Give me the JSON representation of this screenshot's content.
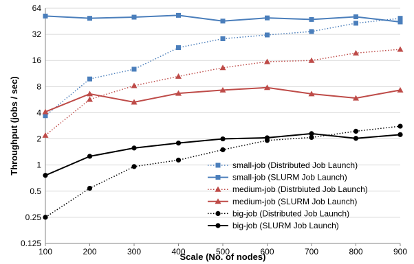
{
  "chart_data": {
    "type": "line",
    "title": "",
    "xlabel": "Scale (No. of nodes)",
    "ylabel": "Throughput (jobs / sec)",
    "y_scale": "log2",
    "x": [
      100,
      200,
      300,
      400,
      500,
      600,
      700,
      800,
      900
    ],
    "xlim": [
      100,
      900
    ],
    "ylim": [
      0.125,
      64
    ],
    "x_ticks": [
      "100",
      "200",
      "300",
      "400",
      "500",
      "600",
      "700",
      "800",
      "900"
    ],
    "y_ticks": [
      {
        "value": 0.125,
        "label": "0.125"
      },
      {
        "value": 0.25,
        "label": "0.25"
      },
      {
        "value": 0.5,
        "label": "0.5"
      },
      {
        "value": 1,
        "label": "1"
      },
      {
        "value": 2,
        "label": "2"
      },
      {
        "value": 4,
        "label": "4"
      },
      {
        "value": 8,
        "label": "8"
      },
      {
        "value": 16,
        "label": "16"
      },
      {
        "value": 32,
        "label": "32"
      },
      {
        "value": 64,
        "label": "64"
      }
    ],
    "grid": "horizontal",
    "legend_position": "bottom-right",
    "series": [
      {
        "name": "small-job (Distributed Job Launch)",
        "color": "#4a7ebb",
        "marker": "square",
        "dash": "dotted",
        "values": [
          3.7,
          9.8,
          12.7,
          22.5,
          28.5,
          31.5,
          34.5,
          43,
          49
        ]
      },
      {
        "name": "small-job (SLURM Job Launch)",
        "color": "#4a7ebb",
        "marker": "square",
        "dash": "solid",
        "values": [
          52,
          49,
          50.5,
          53,
          45.5,
          49.5,
          47.5,
          51,
          44.5
        ]
      },
      {
        "name": "medium-job (Distrbiuted Job Launch)",
        "color": "#be4b48",
        "marker": "triangle",
        "dash": "dotted",
        "values": [
          2.2,
          5.7,
          8.2,
          10.5,
          13.2,
          15.5,
          16,
          19.5,
          21.5
        ]
      },
      {
        "name": "medium-job (SLURM Job Launch)",
        "color": "#be4b48",
        "marker": "triangle",
        "dash": "solid",
        "values": [
          4.1,
          6.6,
          5.3,
          6.7,
          7.3,
          7.8,
          6.6,
          5.9,
          7.3
        ]
      },
      {
        "name": "big-job (Distributed Job Launch)",
        "color": "#000000",
        "marker": "circle",
        "dash": "dotted",
        "values": [
          0.25,
          0.54,
          0.96,
          1.14,
          1.5,
          1.92,
          2.08,
          2.45,
          2.8
        ]
      },
      {
        "name": "big-job (SLURM Job Launch)",
        "color": "#000000",
        "marker": "circle",
        "dash": "solid",
        "values": [
          0.76,
          1.26,
          1.57,
          1.79,
          2.0,
          2.06,
          2.3,
          2.03,
          2.24
        ]
      }
    ]
  }
}
